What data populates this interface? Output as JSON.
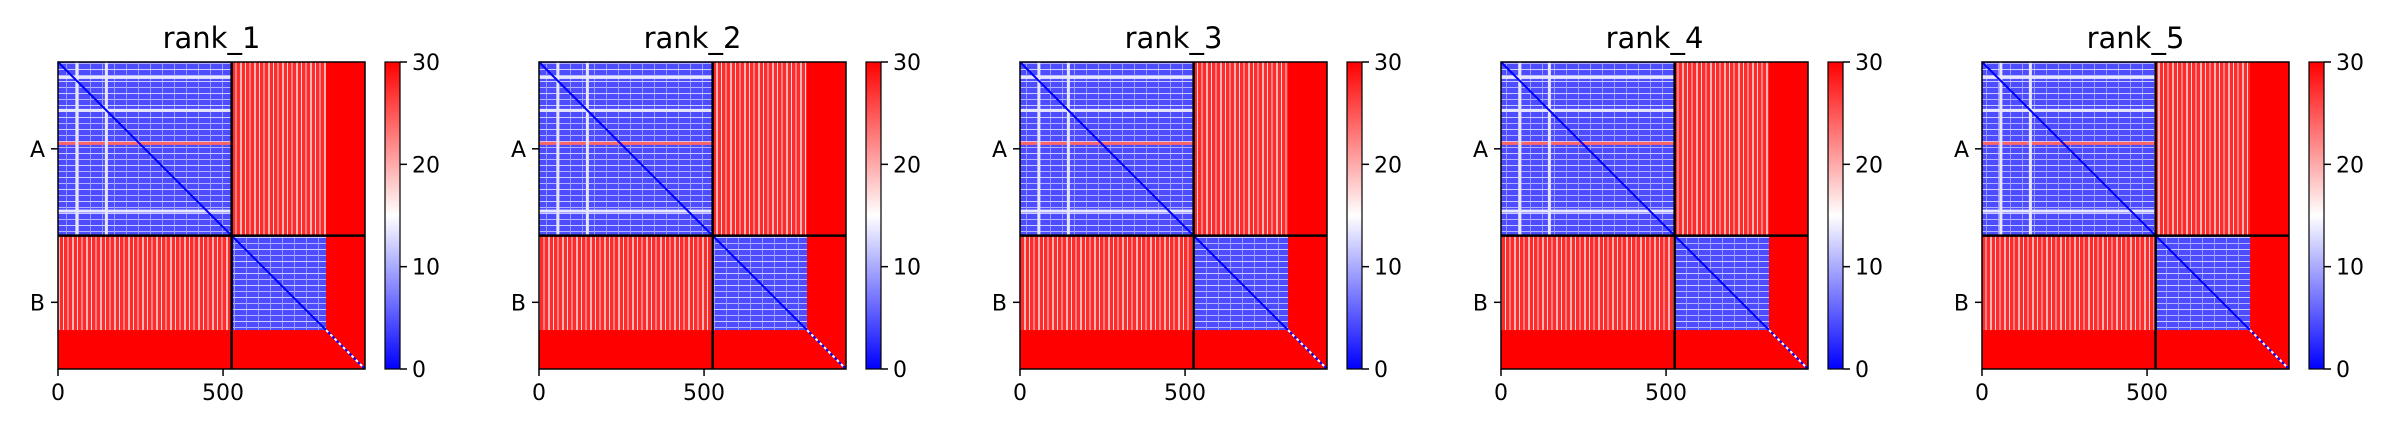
{
  "chart_data": {
    "type": "heatmap",
    "colormap": "bwr",
    "clim": [
      0,
      30
    ],
    "x_range": [
      0,
      930
    ],
    "chain_boundary": 526,
    "chain_b_core_end": 812,
    "x_ticks": [
      "0",
      "500"
    ],
    "x_tick_values": [
      0,
      500
    ],
    "y_ticks": [
      "A",
      "B"
    ],
    "colorbar_ticks": [
      "0",
      "10",
      "20",
      "30"
    ],
    "colorbar_tick_values": [
      0,
      10,
      20,
      30
    ],
    "panels": [
      {
        "title": "rank_1"
      },
      {
        "title": "rank_2"
      },
      {
        "title": "rank_3"
      },
      {
        "title": "rank_4"
      },
      {
        "title": "rank_5"
      }
    ],
    "colors": {
      "high": "#ff0000",
      "mid": "#ffffff",
      "low": "#0000ff"
    }
  }
}
